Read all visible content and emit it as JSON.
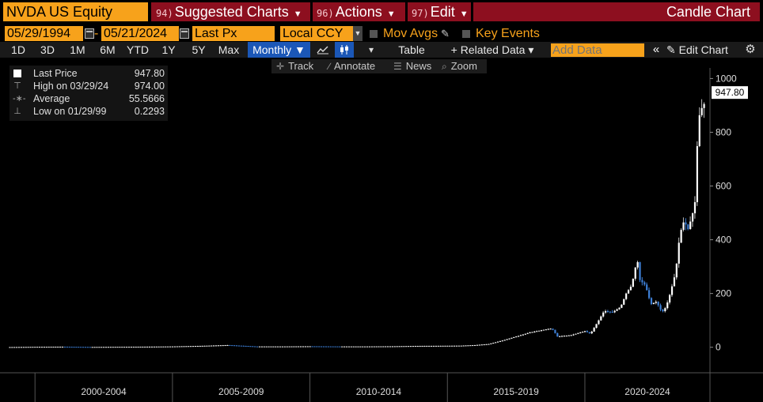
{
  "header": {
    "security": "NVDA US Equity",
    "menus": [
      {
        "num": "94)",
        "label": "Suggested Charts"
      },
      {
        "num": "96)",
        "label": "Actions"
      },
      {
        "num": "97)",
        "label": "Edit"
      }
    ],
    "chart_title": "Candle Chart"
  },
  "controls": {
    "start_date": "05/29/1994",
    "end_date": "05/21/2024",
    "field": "Last Px",
    "currency": "Local CCY",
    "mov_avgs": "Mov Avgs",
    "key_events": "Key Events"
  },
  "toolbar": {
    "periods": [
      "1D",
      "3D",
      "1M",
      "6M",
      "YTD",
      "1Y",
      "5Y",
      "Max"
    ],
    "frequency": "Monthly ▼",
    "table": "Table",
    "related_data": "+ Related Data ▾",
    "add_data_placeholder": "Add Data",
    "edit_chart": "Edit Chart"
  },
  "tools": {
    "track": "Track",
    "annotate": "Annotate",
    "news": "News",
    "zoom": "Zoom"
  },
  "legend": {
    "last_label": "Last Price",
    "last_value": "947.80",
    "high_label": "High on 03/29/24",
    "high_value": "974.00",
    "avg_label": "Average",
    "avg_value": "55.5666",
    "low_label": "Low on 01/29/99",
    "low_value": "0.2293"
  },
  "colors": {
    "up_candle": "#ffffff",
    "down_candle": "#3d7fd6",
    "bloomberg_orange": "#f7a21b",
    "menu_red": "#8d0f1f"
  },
  "chart_data": {
    "type": "line",
    "title": "",
    "xlabel": "",
    "ylabel": "",
    "ylim": [
      -95,
      1010
    ],
    "y_ticks": [
      0,
      200,
      400,
      600,
      800,
      1000
    ],
    "x_period_labels": [
      "2000-2004",
      "2005-2009",
      "2010-2014",
      "2015-2019",
      "2020-2024"
    ],
    "last_price_label": "947.80",
    "grid": false,
    "x": [
      1999.0,
      2000.0,
      2001.0,
      2002.0,
      2003.0,
      2004.0,
      2005.0,
      2006.0,
      2007.0,
      2008.0,
      2009.0,
      2010.0,
      2011.0,
      2012.0,
      2013.0,
      2014.0,
      2015.0,
      2015.5,
      2016.0,
      2016.5,
      2017.0,
      2017.5,
      2018.0,
      2018.5,
      2018.8,
      2019.0,
      2019.5,
      2020.0,
      2020.2,
      2020.5,
      2020.7,
      2021.0,
      2021.3,
      2021.5,
      2021.7,
      2021.9,
      2022.0,
      2022.2,
      2022.4,
      2022.6,
      2022.8,
      2022.95,
      2023.1,
      2023.3,
      2023.45,
      2023.6,
      2023.75,
      2023.9,
      2024.0,
      2024.1,
      2024.2,
      2024.3,
      2024.39
    ],
    "values": [
      0.5,
      1.5,
      2.0,
      1.0,
      1.5,
      2.0,
      3.0,
      5.0,
      8.0,
      3.0,
      3.0,
      3.5,
      3.0,
      3.0,
      3.5,
      5.0,
      5.5,
      6.0,
      8.0,
      12.0,
      25.0,
      40.0,
      55.0,
      65.0,
      70.0,
      40.0,
      45.0,
      60.0,
      50.0,
      100.0,
      135.0,
      130.0,
      150.0,
      200.0,
      230.0,
      330.0,
      250.0,
      230.0,
      160.0,
      170.0,
      130.0,
      150.0,
      200.0,
      280.0,
      420.0,
      470.0,
      440.0,
      490.0,
      540.0,
      790.0,
      900.0,
      880.0,
      947.8
    ]
  }
}
